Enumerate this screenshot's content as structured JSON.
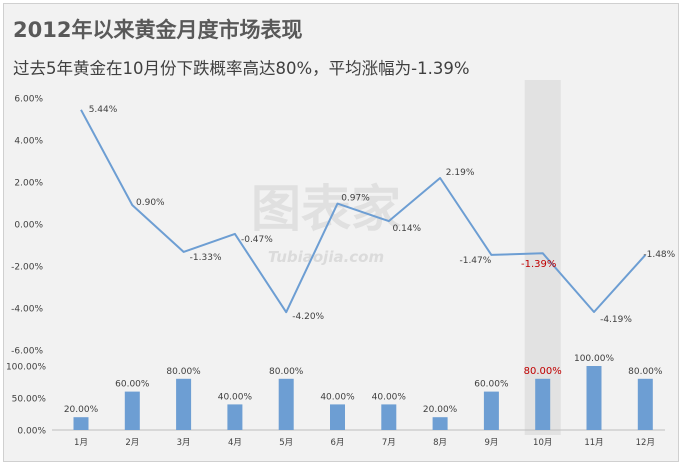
{
  "title": "2012年以来黄金月度市场表现",
  "subtitle": "过去5年黄金在10月份下跌概率高达80%，平均涨幅为-1.39%",
  "watermark": {
    "text": "图表家",
    "url_text": "Tubiaojia.com"
  },
  "colors": {
    "line": "#6d9ed3",
    "bar": "#6d9ed3",
    "highlight_band": "#e2e2e2",
    "highlight_label": "#c00000",
    "label": "#404040",
    "axis": "#bfbfbf"
  },
  "chart_data": [
    {
      "type": "line",
      "categories": [
        "1月",
        "2月",
        "3月",
        "4月",
        "5月",
        "6月",
        "7月",
        "8月",
        "9月",
        "10月",
        "11月",
        "12月"
      ],
      "series": [
        {
          "values": [
            5.44,
            0.9,
            -1.33,
            -0.47,
            -4.2,
            0.97,
            0.14,
            2.19,
            -1.47,
            -1.39,
            -4.19,
            -1.48
          ],
          "labels": [
            "5.44%",
            "0.90%",
            "-1.33%",
            "-0.47%",
            "-4.20%",
            "0.97%",
            "0.14%",
            "2.19%",
            "-1.47%",
            "-1.39%",
            "-4.19%",
            "-1.48%"
          ]
        }
      ],
      "ylim": [
        -6,
        6
      ],
      "yticks": [
        6,
        4,
        2,
        0,
        -2,
        -4,
        -6
      ],
      "ytick_labels": [
        "6.00%",
        "4.00%",
        "2.00%",
        "0.00%",
        "-2.00%",
        "-4.00%",
        "-6.00%"
      ],
      "highlight_category": "10月",
      "grid": false
    },
    {
      "type": "bar",
      "categories": [
        "1月",
        "2月",
        "3月",
        "4月",
        "5月",
        "6月",
        "7月",
        "8月",
        "9月",
        "10月",
        "11月",
        "12月"
      ],
      "series": [
        {
          "values": [
            20,
            60,
            80,
            40,
            80,
            40,
            40,
            20,
            60,
            80,
            100,
            80
          ],
          "labels": [
            "20.00%",
            "60.00%",
            "80.00%",
            "40.00%",
            "80.00%",
            "40.00%",
            "40.00%",
            "20.00%",
            "60.00%",
            "80.00%",
            "100.00%",
            "80.00%"
          ]
        }
      ],
      "ylim": [
        0,
        100
      ],
      "yticks": [
        100,
        50,
        0
      ],
      "ytick_labels": [
        "100.00%",
        "50.00%",
        "0.00%"
      ],
      "highlight_category": "10月",
      "grid": false
    }
  ]
}
